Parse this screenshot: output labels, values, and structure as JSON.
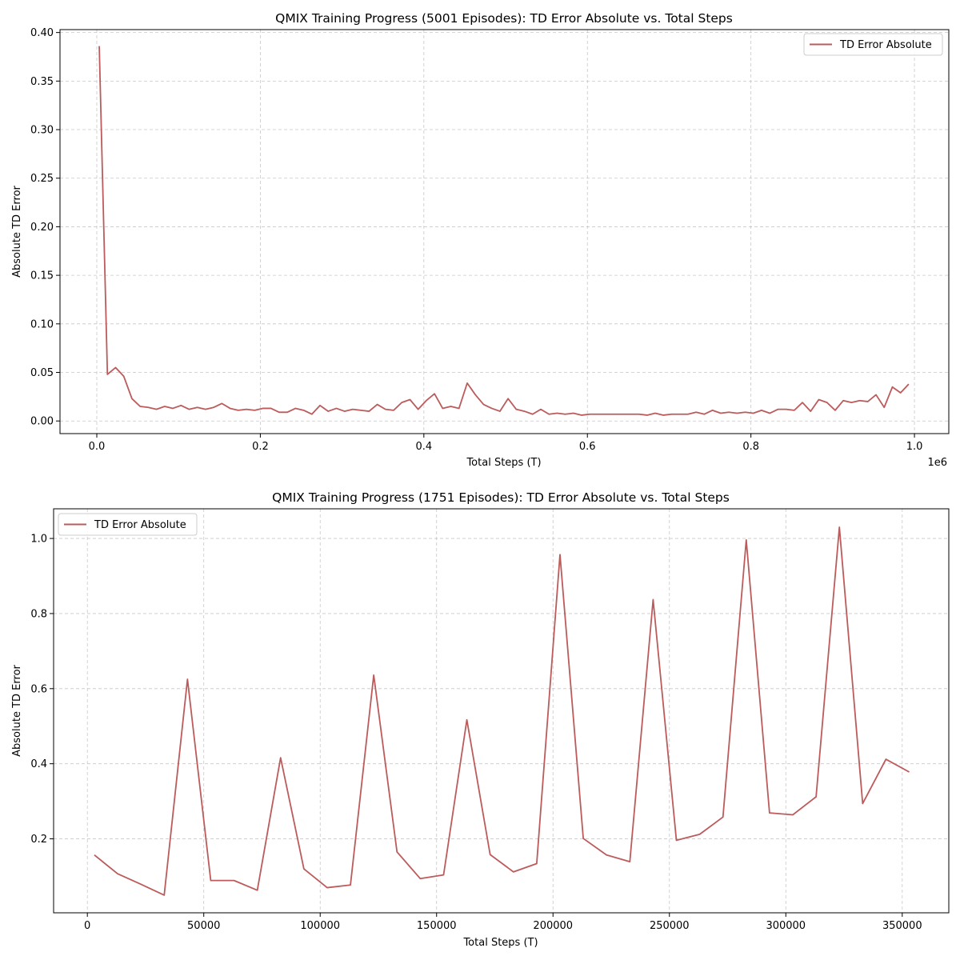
{
  "line_color": "#bc5b5b",
  "chart_data": [
    {
      "type": "line",
      "title": "QMIX Training Progress (5001 Episodes): TD Error Absolute vs. Total Steps",
      "xlabel": "Total Steps (T)",
      "ylabel": "Absolute TD Error",
      "x_offset_label": "1e6",
      "xlim": [
        -0.045,
        1.042
      ],
      "ylim": [
        -0.013,
        0.403
      ],
      "xticks": [
        0.0,
        0.2,
        0.4,
        0.6,
        0.8,
        1.0
      ],
      "xtick_labels": [
        "0.0",
        "0.2",
        "0.4",
        "0.6",
        "0.8",
        "1.0"
      ],
      "yticks": [
        0.0,
        0.05,
        0.1,
        0.15,
        0.2,
        0.25,
        0.3,
        0.35,
        0.4
      ],
      "ytick_labels": [
        "0.00",
        "0.05",
        "0.10",
        "0.15",
        "0.20",
        "0.25",
        "0.30",
        "0.35",
        "0.40"
      ],
      "grid": true,
      "legend_position": "top-right",
      "series": [
        {
          "name": "TD Error Absolute",
          "x": [
            0.003,
            0.013,
            0.023,
            0.033,
            0.043,
            0.053,
            0.063,
            0.073,
            0.083,
            0.093,
            0.103,
            0.113,
            0.123,
            0.133,
            0.143,
            0.153,
            0.163,
            0.173,
            0.183,
            0.193,
            0.203,
            0.213,
            0.223,
            0.233,
            0.243,
            0.253,
            0.263,
            0.273,
            0.283,
            0.293,
            0.303,
            0.313,
            0.323,
            0.333,
            0.343,
            0.353,
            0.363,
            0.373,
            0.383,
            0.393,
            0.403,
            0.413,
            0.423,
            0.433,
            0.443,
            0.453,
            0.463,
            0.473,
            0.483,
            0.493,
            0.503,
            0.513,
            0.523,
            0.533,
            0.543,
            0.553,
            0.563,
            0.573,
            0.583,
            0.593,
            0.603,
            0.613,
            0.623,
            0.633,
            0.643,
            0.653,
            0.663,
            0.673,
            0.683,
            0.693,
            0.703,
            0.713,
            0.723,
            0.733,
            0.743,
            0.753,
            0.763,
            0.773,
            0.783,
            0.793,
            0.803,
            0.813,
            0.823,
            0.833,
            0.843,
            0.853,
            0.863,
            0.873,
            0.883,
            0.893,
            0.903,
            0.913,
            0.923,
            0.933,
            0.943,
            0.953,
            0.963,
            0.973,
            0.983,
            0.993
          ],
          "values": [
            0.386,
            0.048,
            0.055,
            0.046,
            0.023,
            0.015,
            0.014,
            0.012,
            0.015,
            0.013,
            0.016,
            0.012,
            0.014,
            0.012,
            0.014,
            0.018,
            0.013,
            0.011,
            0.012,
            0.011,
            0.013,
            0.013,
            0.009,
            0.009,
            0.013,
            0.011,
            0.007,
            0.016,
            0.01,
            0.013,
            0.01,
            0.012,
            0.011,
            0.01,
            0.017,
            0.012,
            0.011,
            0.019,
            0.022,
            0.012,
            0.021,
            0.028,
            0.013,
            0.015,
            0.013,
            0.039,
            0.027,
            0.017,
            0.013,
            0.01,
            0.023,
            0.012,
            0.01,
            0.007,
            0.012,
            0.007,
            0.008,
            0.007,
            0.008,
            0.006,
            0.007,
            0.007,
            0.007,
            0.007,
            0.007,
            0.007,
            0.007,
            0.006,
            0.008,
            0.006,
            0.007,
            0.007,
            0.007,
            0.009,
            0.007,
            0.011,
            0.008,
            0.009,
            0.008,
            0.009,
            0.008,
            0.011,
            0.008,
            0.012,
            0.012,
            0.011,
            0.019,
            0.01,
            0.022,
            0.019,
            0.011,
            0.021,
            0.019,
            0.021,
            0.02,
            0.027,
            0.014,
            0.035,
            0.029,
            0.038
          ]
        }
      ]
    },
    {
      "type": "line",
      "title": "QMIX Training Progress (1751 Episodes): TD Error Absolute vs. Total Steps",
      "xlabel": "Total Steps (T)",
      "ylabel": "Absolute TD Error",
      "xlim": [
        -14500,
        370000
      ],
      "ylim": [
        0.003,
        1.079
      ],
      "xticks": [
        0,
        50000,
        100000,
        150000,
        200000,
        250000,
        300000,
        350000
      ],
      "xtick_labels": [
        "0",
        "50000",
        "100000",
        "150000",
        "200000",
        "250000",
        "300000",
        "350000"
      ],
      "yticks": [
        0.2,
        0.4,
        0.6,
        0.8,
        1.0
      ],
      "ytick_labels": [
        "0.2",
        "0.4",
        "0.6",
        "0.8",
        "1.0"
      ],
      "grid": true,
      "legend_position": "top-left",
      "series": [
        {
          "name": "TD Error Absolute",
          "x": [
            3000,
            13000,
            23000,
            33000,
            43000,
            53000,
            63000,
            73000,
            83000,
            93000,
            103000,
            113000,
            123000,
            133000,
            143000,
            153000,
            163000,
            173000,
            183000,
            193000,
            203000,
            213000,
            223000,
            233000,
            243000,
            253000,
            263000,
            273000,
            283000,
            293000,
            303000,
            313000,
            323000,
            333000,
            343000,
            353000
          ],
          "values": [
            0.157,
            0.107,
            0.079,
            0.05,
            0.625,
            0.089,
            0.089,
            0.063,
            0.416,
            0.12,
            0.07,
            0.077,
            0.636,
            0.165,
            0.094,
            0.104,
            0.517,
            0.158,
            0.112,
            0.134,
            0.957,
            0.201,
            0.157,
            0.139,
            0.837,
            0.196,
            0.212,
            0.258,
            0.996,
            0.269,
            0.264,
            0.312,
            1.03,
            0.294,
            0.412,
            0.378
          ]
        }
      ]
    }
  ]
}
